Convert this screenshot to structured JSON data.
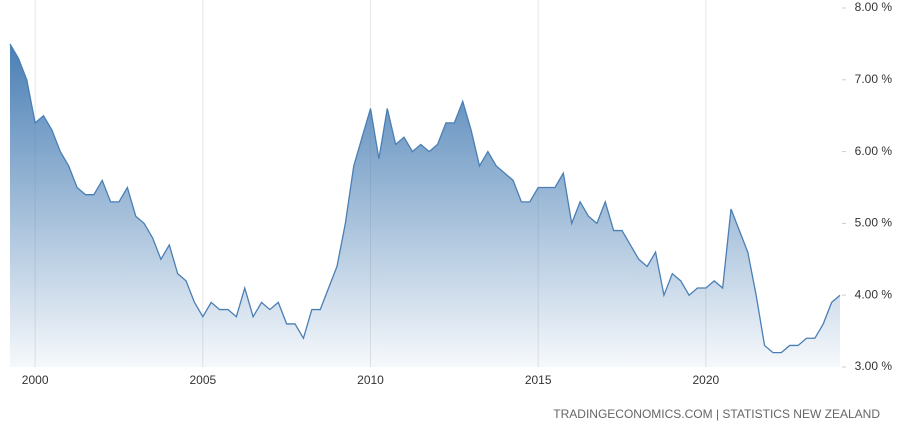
{
  "chart_data": {
    "type": "area",
    "source": "TRADINGECONOMICS.COM | STATISTICS NEW ZEALAND",
    "x": [
      1999.25,
      1999.5,
      1999.75,
      2000,
      2000.25,
      2000.5,
      2000.75,
      2001,
      2001.25,
      2001.5,
      2001.75,
      2002,
      2002.25,
      2002.5,
      2002.75,
      2003,
      2003.25,
      2003.5,
      2003.75,
      2004,
      2004.25,
      2004.5,
      2004.75,
      2005,
      2005.25,
      2005.5,
      2005.75,
      2006,
      2006.25,
      2006.5,
      2006.75,
      2007,
      2007.25,
      2007.5,
      2007.75,
      2008,
      2008.25,
      2008.5,
      2008.75,
      2009,
      2009.25,
      2009.5,
      2009.75,
      2010,
      2010.25,
      2010.5,
      2010.75,
      2011,
      2011.25,
      2011.5,
      2011.75,
      2012,
      2012.25,
      2012.5,
      2012.75,
      2013,
      2013.25,
      2013.5,
      2013.75,
      2014,
      2014.25,
      2014.5,
      2014.75,
      2015,
      2015.25,
      2015.5,
      2015.75,
      2016,
      2016.25,
      2016.5,
      2016.75,
      2017,
      2017.25,
      2017.5,
      2017.75,
      2018,
      2018.25,
      2018.5,
      2018.75,
      2019,
      2019.25,
      2019.5,
      2019.75,
      2020,
      2020.25,
      2020.5,
      2020.75,
      2021,
      2021.25,
      2021.5,
      2021.75,
      2022,
      2022.25,
      2022.5,
      2022.75,
      2023,
      2023.25,
      2023.5,
      2023.75,
      2024
    ],
    "values": [
      7.5,
      7.3,
      7.0,
      6.4,
      6.5,
      6.3,
      6.0,
      5.8,
      5.5,
      5.4,
      5.4,
      5.6,
      5.3,
      5.3,
      5.5,
      5.1,
      5.0,
      4.8,
      4.5,
      4.7,
      4.3,
      4.2,
      3.9,
      3.7,
      3.9,
      3.8,
      3.8,
      3.7,
      4.1,
      3.7,
      3.9,
      3.8,
      3.9,
      3.6,
      3.6,
      3.4,
      3.8,
      3.8,
      4.1,
      4.4,
      5.0,
      5.8,
      6.2,
      6.6,
      5.9,
      6.6,
      6.1,
      6.2,
      6.0,
      6.1,
      6.0,
      6.1,
      6.4,
      6.4,
      6.7,
      6.3,
      5.8,
      6.0,
      5.8,
      5.7,
      5.6,
      5.3,
      5.3,
      5.5,
      5.5,
      5.5,
      5.7,
      5.0,
      5.3,
      5.1,
      5.0,
      5.3,
      4.9,
      4.9,
      4.7,
      4.5,
      4.4,
      4.6,
      4.0,
      4.3,
      4.2,
      4.0,
      4.1,
      4.1,
      4.2,
      4.1,
      5.2,
      4.9,
      4.6,
      4.0,
      3.3,
      3.2,
      3.2,
      3.3,
      3.3,
      3.4,
      3.4,
      3.6,
      3.9,
      4.0
    ],
    "color": "#4a7fb5",
    "xlim": [
      1999.25,
      2024
    ],
    "xticks": [
      2000,
      2005,
      2010,
      2015,
      2020
    ],
    "ylim": [
      3,
      8
    ],
    "yticks": [
      {
        "value": 3,
        "label": "3.00 %"
      },
      {
        "value": 4,
        "label": "4.00 %"
      },
      {
        "value": 5,
        "label": "5.00 %"
      },
      {
        "value": 6,
        "label": "6.00 %"
      },
      {
        "value": 7,
        "label": "7.00 %"
      },
      {
        "value": 8,
        "label": "8.00 %"
      }
    ],
    "grid": "x"
  }
}
